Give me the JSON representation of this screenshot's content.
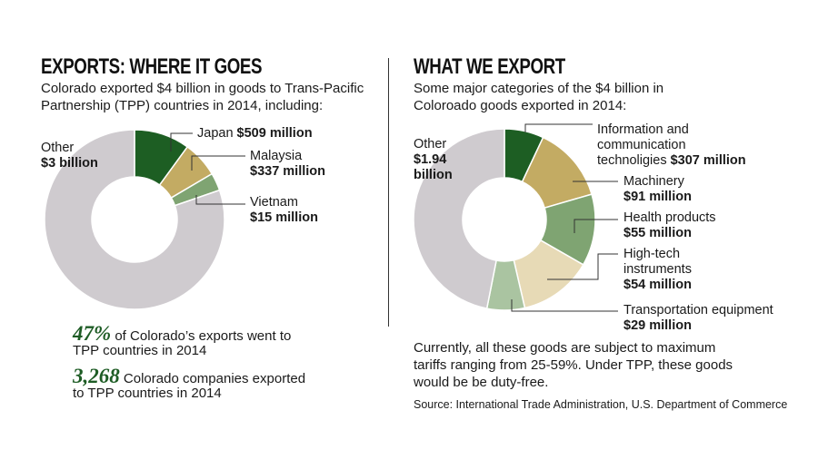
{
  "left": {
    "title": "EXPORTS: WHERE IT GOES",
    "subtitle_line1": "Colorado exported $4 billion in goods to Trans-Pacific",
    "subtitle_line2": "Partnership (TPP) countries in 2014, including:",
    "stat1_value": "47%",
    "stat1_line1": "of Colorado’s exports went to",
    "stat1_line2": "TPP countries in 2014",
    "stat2_value": "3,268",
    "stat2_line1": "Colorado companies exported",
    "stat2_line2": "to TPP countries in 2014"
  },
  "right": {
    "title": "WHAT WE EXPORT",
    "subtitle_line1": "Some major categories of the $4 billion in",
    "subtitle_line2": "Coloroado goods exported in 2014:",
    "note_line1": "Currently, all these goods are subject to maximum",
    "note_line2": "tariffs ranging from 25-59%. Under TPP, these goods",
    "note_line3": "would be be duty-free.",
    "source": "Source: International Trade Administration, U.S. Department of Commerce"
  },
  "chart_data": [
    {
      "type": "pie",
      "donut": true,
      "title": "EXPORTS: WHERE IT GOES",
      "categories": [
        "Japan",
        "Malaysia",
        "Vietnam",
        "Other"
      ],
      "value_labels": [
        "$509 million",
        "$337 million",
        "$15 million",
        "$3 billion"
      ],
      "values_usd_millions": [
        509,
        337,
        15,
        3000
      ],
      "slice_share_percent": [
        10,
        6.5,
        3.2,
        80.3
      ],
      "colors": [
        "#1d5e23",
        "#c3ab63",
        "#7fa472",
        "#cfcbcf"
      ]
    },
    {
      "type": "pie",
      "donut": true,
      "title": "WHAT WE EXPORT",
      "categories": [
        "Information and communication technoligies",
        "Machinery",
        "Health products",
        "High-tech instruments",
        "Transportation equipment",
        "Other"
      ],
      "value_labels": [
        "$307 million",
        "$91 million",
        "$55 million",
        "$54 million",
        "$29 million",
        "$1.94 billion"
      ],
      "values_usd_millions": [
        307,
        91,
        55,
        54,
        29,
        1940
      ],
      "slice_share_percent": [
        7,
        13.5,
        12.8,
        13.1,
        6.7,
        46.9
      ],
      "colors": [
        "#1d5e23",
        "#c3ab63",
        "#7fa472",
        "#e7dab6",
        "#aac4a1",
        "#cfcbcf"
      ]
    }
  ],
  "left_labels": {
    "japan_name": "Japan",
    "japan_value": "$509 million",
    "malaysia_name": "Malaysia",
    "malaysia_value": "$337 million",
    "vietnam_name": "Vietnam",
    "vietnam_value": "$15 million",
    "other_name": "Other",
    "other_value": "$3 billion"
  },
  "right_labels": {
    "ict_line1": "Information and",
    "ict_line2": "communication",
    "ict_line3": "technoligies",
    "ict_value": "$307 million",
    "machinery_name": "Machinery",
    "machinery_value": "$91 million",
    "health_name": "Health products",
    "health_value": "$55 million",
    "hightech_line1": "High-tech",
    "hightech_line2": "instruments",
    "hightech_value": "$54 million",
    "transport_name": "Transportation equipment",
    "transport_value": "$29 million",
    "other_name": "Other",
    "other_line1": "$1.94",
    "other_line2": "billion"
  }
}
